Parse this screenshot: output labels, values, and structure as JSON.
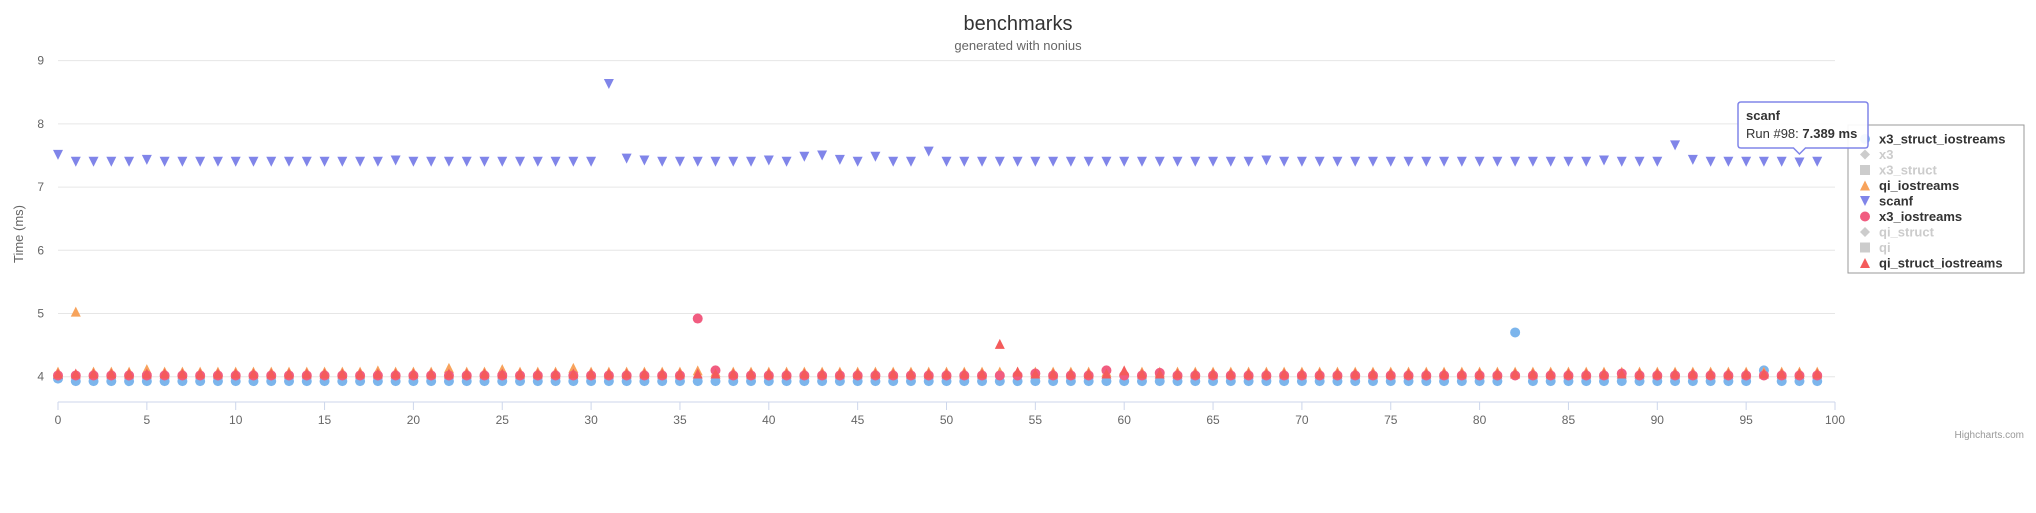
{
  "chart_data": {
    "type": "scatter",
    "title": "benchmarks",
    "subtitle": "generated with nonius",
    "xlabel": "",
    "ylabel": "Time (ms)",
    "xlim": [
      0,
      100
    ],
    "ylim": [
      3.6,
      9.2
    ],
    "x_ticks": [
      0,
      5,
      10,
      15,
      20,
      25,
      30,
      35,
      40,
      45,
      50,
      55,
      60,
      65,
      70,
      75,
      80,
      85,
      90,
      95,
      100
    ],
    "y_ticks": [
      4,
      5,
      6,
      7,
      8,
      9
    ],
    "grid": true,
    "legend_position": "right",
    "credits": "Highcharts.com",
    "series": [
      {
        "name": "x3_struct_iostreams",
        "marker": "circle",
        "color": "#7cb5ec",
        "visible": true,
        "values": [
          3.97,
          3.93,
          3.93,
          3.93,
          3.93,
          3.93,
          3.93,
          3.93,
          3.93,
          3.93,
          3.93,
          3.93,
          3.93,
          3.93,
          3.93,
          3.93,
          3.93,
          3.93,
          3.93,
          3.93,
          3.93,
          3.93,
          3.93,
          3.93,
          3.93,
          3.93,
          3.93,
          3.93,
          3.93,
          3.93,
          3.93,
          3.93,
          3.93,
          3.93,
          3.93,
          3.93,
          3.93,
          3.93,
          3.93,
          3.93,
          3.93,
          3.93,
          3.93,
          3.93,
          3.93,
          3.93,
          3.93,
          3.93,
          3.93,
          3.93,
          3.93,
          3.93,
          3.93,
          3.93,
          3.93,
          3.93,
          3.93,
          3.93,
          3.93,
          3.93,
          3.93,
          3.93,
          3.93,
          3.93,
          3.93,
          3.93,
          3.93,
          3.93,
          3.93,
          3.93,
          3.93,
          3.93,
          3.93,
          3.93,
          3.93,
          3.93,
          3.93,
          3.93,
          3.93,
          3.93,
          3.93,
          3.93,
          4.7,
          3.93,
          3.93,
          3.93,
          3.93,
          3.93,
          3.93,
          3.93,
          3.93,
          3.93,
          3.93,
          3.93,
          3.93,
          3.93,
          4.1,
          3.93,
          3.93,
          3.93
        ]
      },
      {
        "name": "x3",
        "marker": "diamond",
        "color": "#cccccc",
        "visible": false,
        "values": []
      },
      {
        "name": "x3_struct",
        "marker": "square",
        "color": "#cccccc",
        "visible": false,
        "values": []
      },
      {
        "name": "qi_iostreams",
        "marker": "triangle",
        "color": "#f7a35c",
        "visible": true,
        "values": [
          4.08,
          5.03,
          4.08,
          4.08,
          4.08,
          4.12,
          4.08,
          4.08,
          4.08,
          4.08,
          4.08,
          4.08,
          4.08,
          4.08,
          4.08,
          4.08,
          4.08,
          4.08,
          4.1,
          4.08,
          4.08,
          4.08,
          4.14,
          4.08,
          4.08,
          4.12,
          4.08,
          4.08,
          4.08,
          4.14,
          4.08,
          4.08,
          4.08,
          4.08,
          4.08,
          4.08,
          4.1,
          4.08,
          4.08,
          4.08,
          4.08,
          4.08,
          4.08,
          4.08,
          4.08,
          4.08,
          4.08,
          4.08,
          4.08,
          4.08,
          4.08,
          4.08,
          4.08,
          4.08,
          4.08,
          4.08,
          4.08,
          4.08,
          4.08,
          4.08,
          4.08,
          4.08,
          4.08,
          4.08,
          4.08,
          4.08,
          4.08,
          4.08,
          4.08,
          4.08,
          4.08,
          4.08,
          4.08,
          4.08,
          4.08,
          4.08,
          4.08,
          4.08,
          4.08,
          4.08,
          4.08,
          4.08,
          4.08,
          4.08,
          4.08,
          4.08,
          4.08,
          4.08,
          4.08,
          4.08,
          4.08,
          4.08,
          4.08,
          4.08,
          4.08,
          4.08,
          4.08,
          4.08,
          4.08,
          4.08
        ]
      },
      {
        "name": "scanf",
        "marker": "triangle-down",
        "color": "#8085e9",
        "visible": true,
        "values": [
          7.51,
          7.4,
          7.4,
          7.4,
          7.4,
          7.43,
          7.4,
          7.4,
          7.4,
          7.4,
          7.4,
          7.4,
          7.4,
          7.4,
          7.4,
          7.4,
          7.4,
          7.4,
          7.4,
          7.42,
          7.4,
          7.4,
          7.4,
          7.4,
          7.4,
          7.4,
          7.4,
          7.4,
          7.4,
          7.4,
          7.4,
          8.63,
          7.45,
          7.42,
          7.4,
          7.4,
          7.4,
          7.4,
          7.4,
          7.4,
          7.42,
          7.4,
          7.48,
          7.5,
          7.43,
          7.4,
          7.48,
          7.4,
          7.4,
          7.56,
          7.4,
          7.4,
          7.4,
          7.4,
          7.4,
          7.4,
          7.4,
          7.4,
          7.4,
          7.4,
          7.4,
          7.4,
          7.4,
          7.4,
          7.4,
          7.4,
          7.4,
          7.4,
          7.42,
          7.4,
          7.4,
          7.4,
          7.4,
          7.4,
          7.4,
          7.4,
          7.4,
          7.4,
          7.4,
          7.4,
          7.4,
          7.4,
          7.4,
          7.4,
          7.4,
          7.4,
          7.4,
          7.42,
          7.4,
          7.4,
          7.4,
          7.66,
          7.43,
          7.4,
          7.4,
          7.4,
          7.4,
          7.4,
          7.389,
          7.4
        ]
      },
      {
        "name": "x3_iostreams",
        "marker": "circle",
        "color": "#f15c80",
        "visible": true,
        "values": [
          4.02,
          4.02,
          4.02,
          4.02,
          4.02,
          4.02,
          4.02,
          4.02,
          4.02,
          4.02,
          4.02,
          4.02,
          4.02,
          4.02,
          4.02,
          4.02,
          4.02,
          4.02,
          4.02,
          4.02,
          4.02,
          4.02,
          4.02,
          4.02,
          4.02,
          4.02,
          4.02,
          4.02,
          4.02,
          4.02,
          4.02,
          4.02,
          4.02,
          4.02,
          4.02,
          4.02,
          4.92,
          4.1,
          4.02,
          4.02,
          4.02,
          4.02,
          4.02,
          4.02,
          4.02,
          4.02,
          4.02,
          4.02,
          4.02,
          4.02,
          4.02,
          4.02,
          4.02,
          4.02,
          4.02,
          4.05,
          4.02,
          4.02,
          4.02,
          4.1,
          4.02,
          4.02,
          4.06,
          4.02,
          4.02,
          4.02,
          4.02,
          4.02,
          4.02,
          4.02,
          4.02,
          4.02,
          4.02,
          4.02,
          4.02,
          4.02,
          4.02,
          4.02,
          4.02,
          4.02,
          4.02,
          4.02,
          4.02,
          4.02,
          4.02,
          4.02,
          4.02,
          4.02,
          4.05,
          4.02,
          4.02,
          4.02,
          4.02,
          4.02,
          4.02,
          4.02,
          4.02,
          4.02,
          4.02,
          4.02
        ]
      },
      {
        "name": "qi_struct",
        "marker": "diamond",
        "color": "#cccccc",
        "visible": false,
        "values": []
      },
      {
        "name": "qi",
        "marker": "square",
        "color": "#cccccc",
        "visible": false,
        "values": []
      },
      {
        "name": "qi_struct_iostreams",
        "marker": "triangle",
        "color": "#f45b5b",
        "visible": true,
        "values": [
          4.05,
          4.05,
          4.05,
          4.05,
          4.05,
          4.05,
          4.05,
          4.05,
          4.05,
          4.05,
          4.05,
          4.05,
          4.05,
          4.05,
          4.05,
          4.05,
          4.05,
          4.05,
          4.05,
          4.05,
          4.05,
          4.05,
          4.05,
          4.05,
          4.05,
          4.05,
          4.05,
          4.05,
          4.05,
          4.05,
          4.05,
          4.05,
          4.05,
          4.05,
          4.05,
          4.05,
          4.05,
          4.05,
          4.05,
          4.05,
          4.05,
          4.05,
          4.05,
          4.05,
          4.05,
          4.05,
          4.05,
          4.05,
          4.05,
          4.05,
          4.05,
          4.05,
          4.05,
          4.52,
          4.08,
          4.05,
          4.05,
          4.05,
          4.05,
          4.05,
          4.1,
          4.05,
          4.05,
          4.05,
          4.05,
          4.05,
          4.05,
          4.05,
          4.05,
          4.05,
          4.05,
          4.05,
          4.05,
          4.05,
          4.05,
          4.05,
          4.05,
          4.05,
          4.05,
          4.05,
          4.05,
          4.05,
          4.05,
          4.05,
          4.05,
          4.05,
          4.05,
          4.05,
          4.05,
          4.05,
          4.05,
          4.05,
          4.05,
          4.05,
          4.05,
          4.05,
          4.05,
          4.05,
          4.05,
          4.05
        ]
      }
    ],
    "tooltip": {
      "series": "scanf",
      "label": "Run #98: ",
      "value": "7.389 ms",
      "x": 98,
      "y": 7.389,
      "border_color": "#8085e9"
    }
  }
}
